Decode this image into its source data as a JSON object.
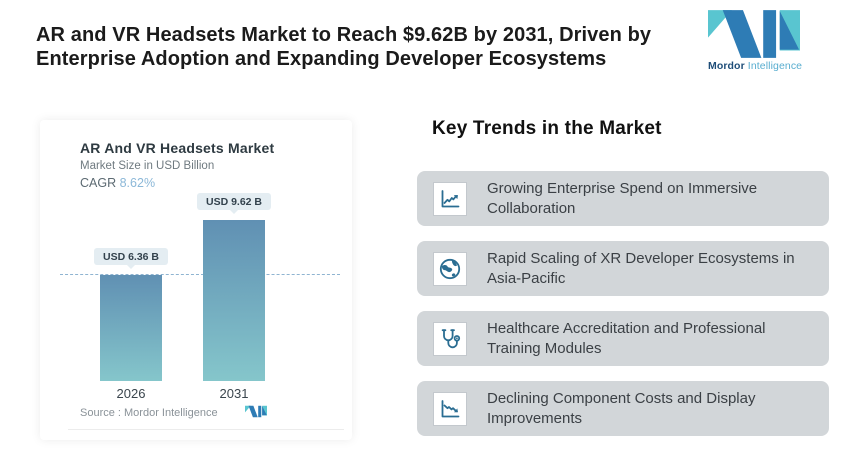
{
  "header": {
    "headline": "AR and VR Headsets Market to Reach $9.62B by 2031, Driven by Enterprise Adoption and Expanding Developer Ecosystems",
    "logo": {
      "name": "Mordor",
      "suffix": "Intelligence"
    }
  },
  "chart": {
    "title": "AR And VR Headsets Market",
    "subtitle": "Market Size in USD Billion",
    "cagr_label": "CAGR",
    "cagr_value": "8.62%",
    "bars": [
      {
        "year": "2026",
        "label": "USD 6.36 B"
      },
      {
        "year": "2031",
        "label": "USD 9.62 B"
      }
    ],
    "source": "Source :  Mordor Intelligence"
  },
  "chart_data": {
    "type": "bar",
    "title": "AR And VR Headsets Market",
    "subtitle": "Market Size in USD Billion",
    "cagr": "8.62%",
    "categories": [
      "2026",
      "2031"
    ],
    "values": [
      6.36,
      9.62
    ],
    "unit": "USD Billion",
    "data_labels": [
      "USD 6.36 B",
      "USD 9.62 B"
    ],
    "reference_line": 6.36,
    "ylim": [
      0,
      9.62
    ],
    "grid": false,
    "legend": false,
    "source": "Mordor Intelligence"
  },
  "trends": {
    "heading": "Key Trends in the Market",
    "items": [
      {
        "icon": "trend-up-chart-icon",
        "text": "Growing Enterprise Spend on Immersive Collaboration"
      },
      {
        "icon": "globe-icon",
        "text": "Rapid Scaling of XR Developer Ecosystems in Asia-Pacific"
      },
      {
        "icon": "stethoscope-icon",
        "text": "Healthcare Accreditation and Professional Training Modules"
      },
      {
        "icon": "trend-down-chart-icon",
        "text": "Declining Component Costs and Display Improvements"
      }
    ]
  },
  "colors": {
    "bar_gradient_top": "#6090b3",
    "bar_gradient_bottom": "#85c6cb",
    "reference_dash": "#8fb4d1",
    "value_tag_bg": "#e4edf2",
    "trend_card_bg": "#d2d6d9",
    "icon_blue": "#2a6d92",
    "cagr_blue": "#8cb8d8",
    "logo_blue": "#2e7cb5",
    "logo_teal": "#59c5d0"
  }
}
